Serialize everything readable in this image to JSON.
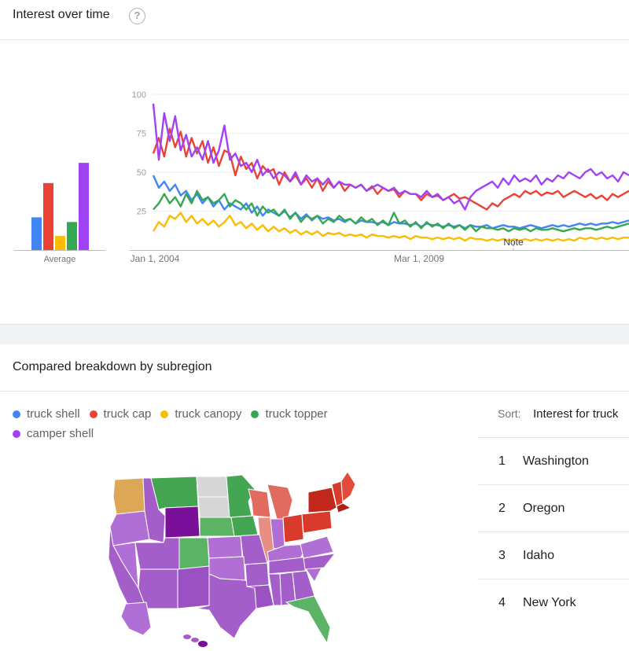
{
  "interest": {
    "title": "Interest over time",
    "help_icon": "help-circle-icon"
  },
  "subregion": {
    "title": "Compared breakdown by subregion",
    "sort_label": "Sort:",
    "sort_value": "Interest for truck"
  },
  "legend": [
    {
      "name": "truck shell",
      "color": "#4285f4"
    },
    {
      "name": "truck cap",
      "color": "#ea4335"
    },
    {
      "name": "truck canopy",
      "color": "#fbbc04"
    },
    {
      "name": "truck topper",
      "color": "#34a853"
    },
    {
      "name": "camper shell",
      "color": "#a142f4"
    }
  ],
  "rankings": [
    {
      "rank": "1",
      "name": "Washington"
    },
    {
      "rank": "2",
      "name": "Oregon"
    },
    {
      "rank": "3",
      "name": "Idaho"
    },
    {
      "rank": "4",
      "name": "New York"
    }
  ],
  "chart_data": [
    {
      "type": "bar",
      "categories": [
        "truck shell",
        "truck cap",
        "truck canopy",
        "truck topper",
        "camper shell"
      ],
      "values": [
        21,
        43,
        9,
        18,
        56
      ],
      "colors": [
        "#4285f4",
        "#ea4335",
        "#fbbc04",
        "#34a853",
        "#a142f4"
      ],
      "xlabel": "Average",
      "ylim": [
        0,
        100
      ]
    },
    {
      "type": "line",
      "x_ticks": [
        "Jan 1, 2004",
        "Mar 1, 2009"
      ],
      "y_ticks": [
        25,
        50,
        75,
        100
      ],
      "ylim": [
        0,
        100
      ],
      "xlim": [
        "2004-01",
        "2013-06"
      ],
      "grid": true,
      "annotation": "Note",
      "series": [
        {
          "name": "truck shell",
          "color": "#4285f4",
          "values": [
            48,
            40,
            44,
            38,
            42,
            35,
            38,
            32,
            36,
            30,
            34,
            28,
            32,
            26,
            30,
            28,
            26,
            30,
            24,
            28,
            22,
            26,
            24,
            22,
            25,
            21,
            24,
            20,
            23,
            19,
            22,
            20,
            21,
            19,
            20,
            18,
            20,
            17,
            19,
            18,
            18,
            17,
            18,
            16,
            18,
            17,
            17,
            16,
            17,
            15,
            17,
            16,
            16,
            15,
            16,
            15,
            16,
            14,
            16,
            15,
            15,
            16,
            14,
            15,
            16,
            15,
            15,
            14,
            15,
            16,
            15,
            14,
            15,
            16,
            15,
            16,
            15,
            16,
            17,
            16,
            17,
            16,
            17,
            17,
            18,
            17,
            18,
            19
          ]
        },
        {
          "name": "truck cap",
          "color": "#ea4335",
          "values": [
            62,
            72,
            60,
            78,
            66,
            76,
            60,
            72,
            62,
            70,
            56,
            66,
            54,
            64,
            62,
            48,
            60,
            52,
            56,
            46,
            54,
            50,
            52,
            42,
            50,
            44,
            48,
            42,
            46,
            40,
            46,
            38,
            44,
            40,
            44,
            38,
            42,
            40,
            42,
            38,
            41,
            36,
            40,
            38,
            39,
            34,
            38,
            36,
            36,
            32,
            36,
            34,
            35,
            32,
            34,
            36,
            33,
            34,
            32,
            30,
            28,
            26,
            30,
            28,
            32,
            34,
            36,
            34,
            38,
            36,
            38,
            35,
            37,
            36,
            38,
            34,
            36,
            38,
            36,
            34,
            36,
            33,
            35,
            32,
            36,
            34,
            36,
            38
          ]
        },
        {
          "name": "truck canopy",
          "color": "#fbbc04",
          "values": [
            12,
            18,
            15,
            22,
            20,
            24,
            18,
            22,
            17,
            20,
            16,
            19,
            15,
            18,
            22,
            16,
            18,
            14,
            17,
            13,
            16,
            12,
            15,
            12,
            14,
            11,
            13,
            10,
            12,
            10,
            12,
            9,
            11,
            10,
            11,
            9,
            10,
            9,
            10,
            8,
            10,
            9,
            9,
            8,
            9,
            8,
            9,
            7,
            9,
            8,
            8,
            7,
            8,
            7,
            8,
            7,
            8,
            6,
            8,
            7,
            7,
            6,
            7,
            6,
            7,
            6,
            7,
            6,
            7,
            6,
            7,
            6,
            7,
            6,
            7,
            6,
            7,
            6,
            8,
            7,
            8,
            7,
            8,
            7,
            8,
            7,
            8,
            8
          ]
        },
        {
          "name": "truck topper",
          "color": "#34a853",
          "values": [
            26,
            30,
            36,
            30,
            34,
            28,
            36,
            30,
            38,
            32,
            34,
            30,
            32,
            36,
            28,
            32,
            30,
            26,
            30,
            22,
            28,
            24,
            26,
            22,
            26,
            20,
            24,
            18,
            22,
            20,
            22,
            17,
            20,
            18,
            22,
            19,
            20,
            17,
            21,
            18,
            20,
            16,
            19,
            16,
            24,
            17,
            19,
            15,
            18,
            14,
            18,
            15,
            17,
            14,
            17,
            14,
            16,
            13,
            16,
            12,
            15,
            14,
            14,
            13,
            14,
            12,
            14,
            13,
            14,
            12,
            14,
            13,
            13,
            14,
            13,
            12,
            13,
            14,
            13,
            14,
            14,
            13,
            14,
            15,
            14,
            15,
            16,
            17
          ]
        },
        {
          "name": "camper shell",
          "color": "#a142f4",
          "values": [
            94,
            58,
            88,
            70,
            86,
            64,
            74,
            60,
            66,
            58,
            70,
            56,
            64,
            80,
            58,
            62,
            54,
            56,
            50,
            58,
            48,
            52,
            46,
            50,
            48,
            44,
            50,
            42,
            48,
            44,
            46,
            42,
            46,
            40,
            44,
            42,
            42,
            40,
            42,
            38,
            40,
            42,
            40,
            38,
            40,
            36,
            38,
            36,
            36,
            34,
            38,
            34,
            36,
            32,
            34,
            30,
            32,
            26,
            34,
            38,
            40,
            42,
            44,
            40,
            46,
            42,
            48,
            44,
            46,
            44,
            48,
            42,
            46,
            44,
            48,
            46,
            50,
            48,
            46,
            50,
            52,
            48,
            50,
            46,
            48,
            44,
            50,
            48
          ]
        }
      ]
    },
    {
      "type": "map",
      "legend_colors": {
        "truck shell": "#4285f4",
        "truck cap": "#ea4335",
        "truck canopy": "#fbbc04",
        "truck topper": "#34a853",
        "camper shell": "#a142f4"
      }
    }
  ]
}
